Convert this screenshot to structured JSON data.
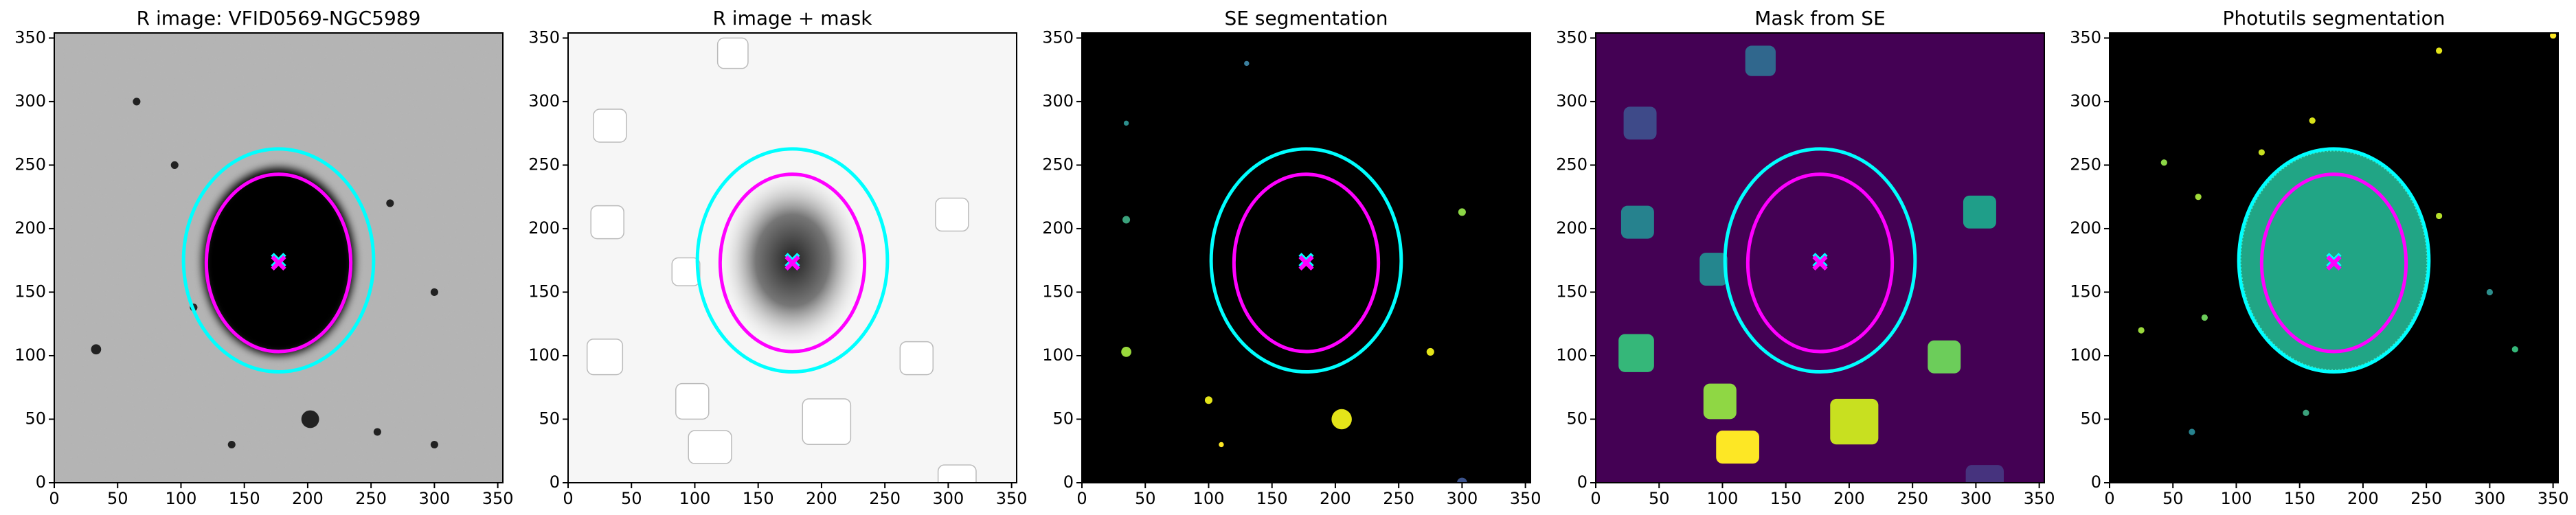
{
  "chart_data": [
    {
      "type": "image",
      "title": "R image: VFID0569-NGC5989",
      "xlim": [
        0,
        354
      ],
      "ylim": [
        0,
        354
      ],
      "xticks": [
        0,
        50,
        100,
        150,
        200,
        250,
        300,
        350
      ],
      "yticks": [
        0,
        50,
        100,
        150,
        200,
        250,
        300,
        350
      ],
      "ellipses": [
        {
          "color": "#00ffff",
          "center": [
            177,
            175
          ],
          "width": 150,
          "height": 176
        },
        {
          "color": "#ff00ff",
          "center": [
            177,
            173
          ],
          "width": 114,
          "height": 140
        }
      ]
    },
    {
      "type": "image",
      "title": "R image + mask",
      "xlim": [
        0,
        354
      ],
      "ylim": [
        0,
        354
      ],
      "xticks": [
        0,
        50,
        100,
        150,
        200,
        250,
        300,
        350
      ],
      "yticks": [
        0,
        50,
        100,
        150,
        200,
        250,
        300,
        350
      ],
      "ellipses": [
        {
          "color": "#00ffff",
          "center": [
            177,
            175
          ],
          "width": 150,
          "height": 176
        },
        {
          "color": "#ff00ff",
          "center": [
            177,
            173
          ],
          "width": 114,
          "height": 140
        }
      ]
    },
    {
      "type": "image",
      "title": "SE segmentation",
      "xlim": [
        0,
        354
      ],
      "ylim": [
        0,
        354
      ],
      "xticks": [
        0,
        50,
        100,
        150,
        200,
        250,
        300,
        350
      ],
      "yticks": [
        0,
        50,
        100,
        150,
        200,
        250,
        300,
        350
      ],
      "ellipses": [
        {
          "color": "#00ffff",
          "center": [
            177,
            175
          ],
          "width": 150,
          "height": 176
        },
        {
          "color": "#ff00ff",
          "center": [
            177,
            173
          ],
          "width": 114,
          "height": 140
        }
      ]
    },
    {
      "type": "image",
      "title": "Mask from SE",
      "xlim": [
        0,
        354
      ],
      "ylim": [
        0,
        354
      ],
      "xticks": [
        0,
        50,
        100,
        150,
        200,
        250,
        300,
        350
      ],
      "yticks": [
        0,
        50,
        100,
        150,
        200,
        250,
        300,
        350
      ],
      "ellipses": [
        {
          "color": "#00ffff",
          "center": [
            177,
            175
          ],
          "width": 150,
          "height": 176
        },
        {
          "color": "#ff00ff",
          "center": [
            177,
            173
          ],
          "width": 114,
          "height": 140
        }
      ]
    },
    {
      "type": "image",
      "title": "Photutils segmentation",
      "xlim": [
        0,
        354
      ],
      "ylim": [
        0,
        354
      ],
      "xticks": [
        0,
        50,
        100,
        150,
        200,
        250,
        300,
        350
      ],
      "yticks": [
        0,
        50,
        100,
        150,
        200,
        250,
        300,
        350
      ],
      "ellipses": [
        {
          "color": "#00ffff",
          "center": [
            177,
            175
          ],
          "width": 150,
          "height": 176
        },
        {
          "color": "#ff00ff",
          "center": [
            177,
            173
          ],
          "width": 114,
          "height": 140
        }
      ]
    }
  ]
}
